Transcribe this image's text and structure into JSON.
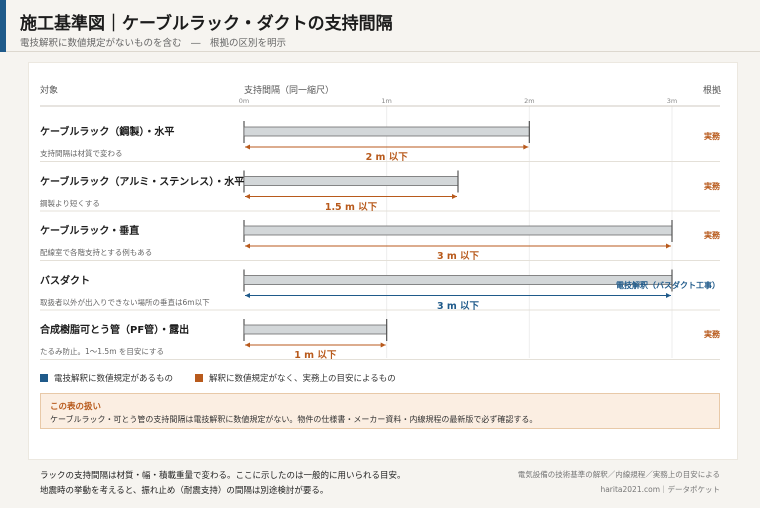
{
  "header": {
    "title": "施工基準図｜ケーブルラック・ダクトの支持間隔",
    "subtitle": "電技解釈に数値規定がないものを含む　―　根拠の区別を明示"
  },
  "columns": {
    "target": "対象",
    "span": "支持間隔（同一縮尺）",
    "basis": "根拠"
  },
  "colors": {
    "regulation": "#1f5a8a",
    "practice": "#b85a1c",
    "bar_fill": "#d3d7d9",
    "bar_stroke": "#6c6c6c"
  },
  "chart_data": {
    "type": "bar",
    "orientation": "horizontal",
    "x_unit": "m",
    "xlim": [
      0,
      3
    ],
    "ticks": [
      {
        "value": 0,
        "label": "0m"
      },
      {
        "value": 1,
        "label": "1m"
      },
      {
        "value": 2,
        "label": "2m"
      },
      {
        "value": 3,
        "label": "3m"
      }
    ],
    "rows": [
      {
        "name": "ケーブルラック（鋼製）・水平",
        "note": "支持間隔は材質で変わる",
        "value": 2,
        "label": "2 m 以下",
        "basis": "実務",
        "kind": "practice"
      },
      {
        "name": "ケーブルラック（アルミ・ステンレス）・水平",
        "note": "鋼製より短くする",
        "value": 1.5,
        "label": "1.5 m 以下",
        "basis": "実務",
        "kind": "practice"
      },
      {
        "name": "ケーブルラック・垂直",
        "note": "配線室で各階支持とする例もある",
        "value": 3,
        "label": "3 m 以下",
        "basis": "実務",
        "kind": "practice"
      },
      {
        "name": "バスダクト",
        "note": "取扱者以外が出入りできない場所の垂直は6m以下",
        "value": 3,
        "label": "3 m 以下",
        "basis": "電技解釈（バスダクト工事）",
        "kind": "regulation"
      },
      {
        "name": "合成樹脂可とう管（PF管）・露出",
        "note": "たるみ防止。1〜1.5m を目安にする",
        "value": 1,
        "label": "1 m 以下",
        "basis": "実務",
        "kind": "practice"
      }
    ],
    "legend": [
      {
        "label": "電技解釈に数値規定があるもの",
        "kind": "regulation"
      },
      {
        "label": "解釈に数値規定がなく、実務上の目安によるもの",
        "kind": "practice"
      }
    ]
  },
  "notice": {
    "title": "この表の扱い",
    "body": "ケーブルラック・可とう管の支持間隔は電技解釈に数値規定がない。物件の仕様書・メーカー資料・内線規程の最新版で必ず確認する。"
  },
  "footer": {
    "note1": "ラックの支持間隔は材質・幅・積載重量で変わる。ここに示したのは一般的に用いられる目安。",
    "note2": "地震時の挙動を考えると、振れ止め（耐震支持）の間隔は別途検討が要る。",
    "source": "電気設備の技術基準の解釈／内線規程／実務上の目安による",
    "site": "harita2021.com｜データポケット"
  }
}
